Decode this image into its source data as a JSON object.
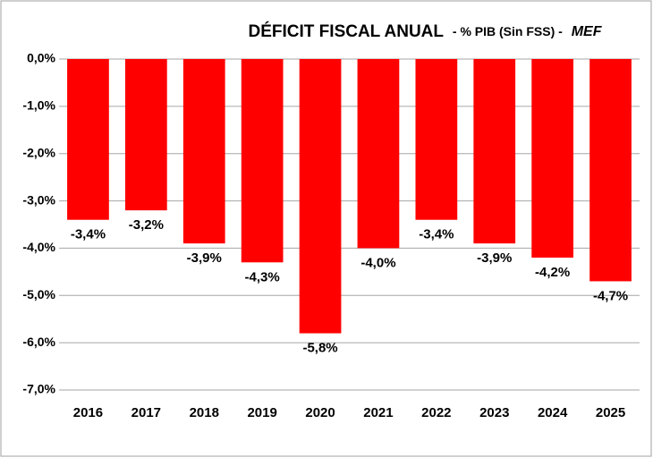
{
  "chart_data": {
    "type": "bar",
    "title": [
      "DÉFICIT FISCAL ANUAL",
      "- % PIB (Sin FSS) -",
      "MEF"
    ],
    "categories": [
      "2016",
      "2017",
      "2018",
      "2019",
      "2020",
      "2021",
      "2022",
      "2023",
      "2024",
      "2025"
    ],
    "values": [
      -3.4,
      -3.2,
      -3.9,
      -4.3,
      -5.8,
      -4.0,
      -3.4,
      -3.9,
      -4.2,
      -4.7
    ],
    "value_labels": [
      "-3,4%",
      "-3,2%",
      "-3,9%",
      "-4,3%",
      "-5,8%",
      "-4,0%",
      "-3,4%",
      "-3,9%",
      "-4,2%",
      "-4,7%"
    ],
    "color": "#ff0000",
    "ylim": [
      -7,
      0
    ],
    "yticks": [
      {
        "value": 0,
        "label": "0,0%"
      },
      {
        "value": -1,
        "label": "-1,0%"
      },
      {
        "value": -2,
        "label": "-2,0%"
      },
      {
        "value": -3,
        "label": "-3,0%"
      },
      {
        "value": -4,
        "label": "-4,0%"
      },
      {
        "value": -5,
        "label": "-5,0%"
      },
      {
        "value": -6,
        "label": "-6,0%"
      },
      {
        "value": -7,
        "label": "-7,0%"
      }
    ],
    "grid": true
  }
}
